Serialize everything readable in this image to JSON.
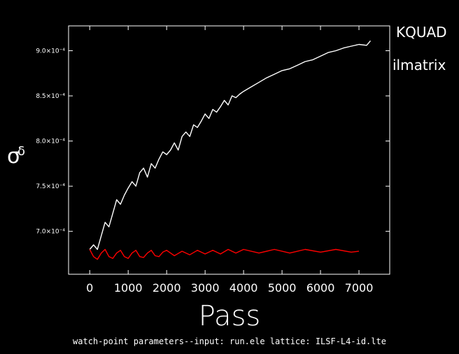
{
  "chart_data": {
    "type": "line",
    "title": "",
    "xlabel": "Pass",
    "ylabel_main": "σ",
    "ylabel_sub": "δ",
    "xlim": [
      -550,
      7800
    ],
    "ylim": [
      0.0006525,
      0.0009275
    ],
    "x_ticks": [
      0,
      1000,
      2000,
      3000,
      4000,
      5000,
      6000,
      7000
    ],
    "x_tick_labels": [
      "0",
      "1000",
      "2000",
      "3000",
      "4000",
      "5000",
      "6000",
      "7000"
    ],
    "y_ticks": [
      0.0007,
      0.00075,
      0.0008,
      0.00085,
      0.0009
    ],
    "y_tick_labels": [
      "7.0×10⁻⁴",
      "7.5×10⁻⁴",
      "8.0×10⁻⁴",
      "8.5×10⁻⁴",
      "9.0×10⁻⁴"
    ],
    "legend_position": "right, outside plot",
    "grid": false,
    "footer": "watch-point parameters--input: run.ele  lattice: ILSF-L4-id.lte",
    "series": [
      {
        "name": "KQUAD",
        "color": "#ffffff",
        "x": [
          0,
          100,
          200,
          300,
          400,
          500,
          600,
          700,
          800,
          900,
          1000,
          1100,
          1200,
          1300,
          1400,
          1500,
          1600,
          1700,
          1800,
          1900,
          2000,
          2100,
          2200,
          2300,
          2400,
          2500,
          2600,
          2700,
          2800,
          2900,
          3000,
          3100,
          3200,
          3300,
          3400,
          3500,
          3600,
          3700,
          3800,
          3900,
          4000,
          4200,
          4400,
          4600,
          4800,
          5000,
          5200,
          5400,
          5600,
          5800,
          6000,
          6200,
          6400,
          6600,
          6800,
          7000,
          7200,
          7300
        ],
        "y": [
          0.00068,
          0.000685,
          0.00068,
          0.000695,
          0.00071,
          0.000705,
          0.00072,
          0.000735,
          0.00073,
          0.00074,
          0.000748,
          0.000755,
          0.00075,
          0.000765,
          0.00077,
          0.00076,
          0.000775,
          0.00077,
          0.00078,
          0.000788,
          0.000785,
          0.00079,
          0.000798,
          0.00079,
          0.000805,
          0.00081,
          0.000805,
          0.000818,
          0.000815,
          0.000822,
          0.00083,
          0.000825,
          0.000835,
          0.000832,
          0.000838,
          0.000845,
          0.00084,
          0.00085,
          0.000848,
          0.000852,
          0.000855,
          0.00086,
          0.000865,
          0.00087,
          0.000874,
          0.000878,
          0.00088,
          0.000884,
          0.000888,
          0.00089,
          0.000894,
          0.000898,
          0.0009,
          0.000903,
          0.000905,
          0.000907,
          0.000906,
          0.000911
        ]
      },
      {
        "name": "ilmatrix",
        "color": "#ff0000",
        "x": [
          0,
          100,
          200,
          300,
          400,
          500,
          600,
          700,
          800,
          900,
          1000,
          1100,
          1200,
          1300,
          1400,
          1500,
          1600,
          1700,
          1800,
          1900,
          2000,
          2200,
          2400,
          2600,
          2800,
          3000,
          3200,
          3400,
          3600,
          3800,
          4000,
          4400,
          4800,
          5200,
          5600,
          6000,
          6400,
          6800,
          7000
        ],
        "y": [
          0.00068,
          0.000672,
          0.000669,
          0.000676,
          0.00068,
          0.000672,
          0.00067,
          0.000676,
          0.000679,
          0.000672,
          0.00067,
          0.000676,
          0.000679,
          0.000672,
          0.000671,
          0.000676,
          0.000679,
          0.000673,
          0.000672,
          0.000677,
          0.000679,
          0.000673,
          0.000678,
          0.000674,
          0.000679,
          0.000675,
          0.000679,
          0.000675,
          0.00068,
          0.000676,
          0.00068,
          0.000676,
          0.00068,
          0.000676,
          0.00068,
          0.000677,
          0.00068,
          0.000677,
          0.000678
        ]
      }
    ]
  }
}
